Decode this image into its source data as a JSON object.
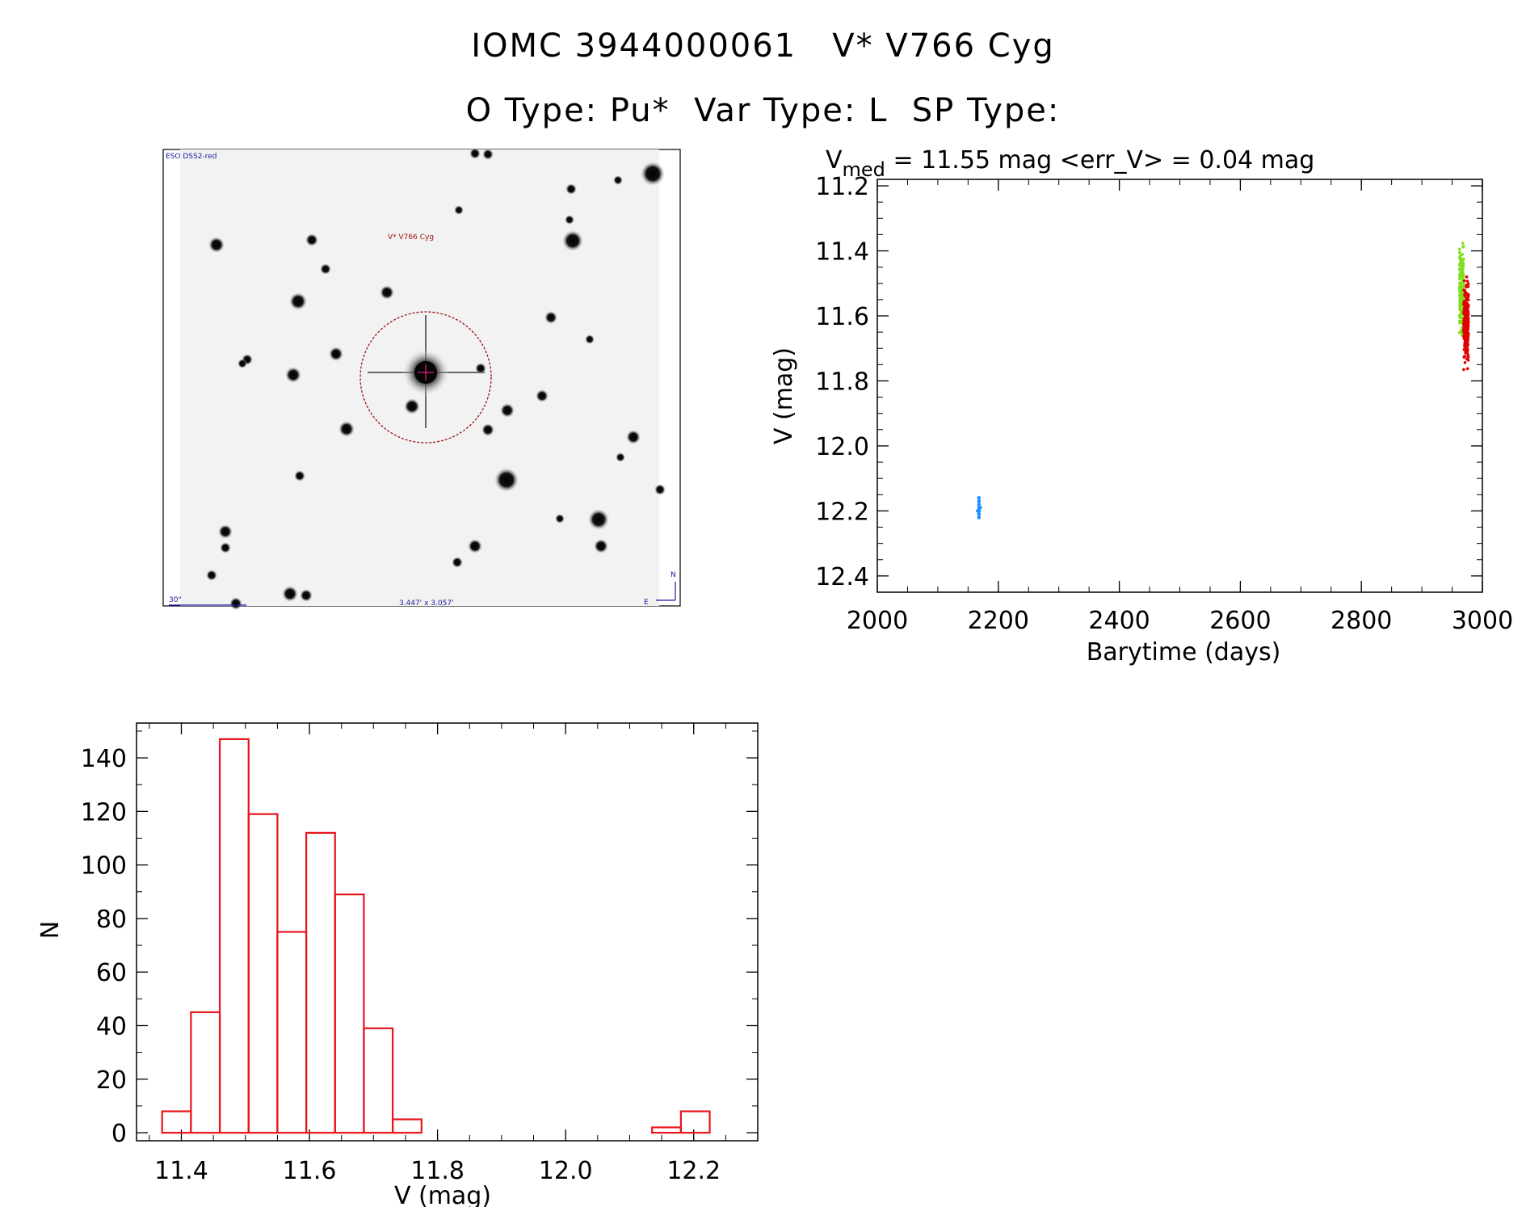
{
  "header": {
    "line1": "IOMC 3944000061   V* V766 Cyg",
    "line2": "O Type: Pu*  Var Type: L  SP Type:"
  },
  "sky_image": {
    "survey_label": "ESO DSS2-red",
    "target_label": "V* V766 Cyg",
    "scale_label": "30\"",
    "fov_label": "3.447' x 3.057'",
    "north_label": "N",
    "east_label": "E"
  },
  "colors": {
    "histogram": "#e8141c",
    "series_blue": "#1e90ff",
    "series_green": "#7fe01e",
    "series_red": "#e00000",
    "target_circle": "#a01010",
    "sky_labels": "#1a1aa0"
  },
  "chart_data": [
    {
      "type": "scatter",
      "title_main": "V",
      "title_sub": "med",
      "title_rest": " = 11.55 mag <err_V> = 0.04 mag",
      "xlabel": "Barytime (days)",
      "ylabel": "V (mag)",
      "xlim": [
        2000,
        3000
      ],
      "ylim": [
        12.45,
        11.18
      ],
      "xticks": [
        2000,
        2200,
        2400,
        2600,
        2800,
        3000
      ],
      "xtick_labels": [
        "2000",
        "2200",
        "2400",
        "2600",
        "2800",
        "3000"
      ],
      "yticks": [
        11.2,
        11.4,
        11.6,
        11.8,
        12.0,
        12.2,
        12.4
      ],
      "ytick_labels": [
        "11.2",
        "11.4",
        "11.6",
        "11.8",
        "12.0",
        "12.2",
        "12.4"
      ],
      "series": [
        {
          "color": "#1e90ff",
          "points": [
            [
              2168,
              12.16
            ],
            [
              2168,
              12.17
            ],
            [
              2168,
              12.18
            ],
            [
              2168,
              12.19
            ],
            [
              2168,
              12.2
            ],
            [
              2168,
              12.21
            ],
            [
              2168,
              12.22
            ],
            [
              2166,
              12.2
            ],
            [
              2170,
              12.19
            ]
          ]
        },
        {
          "color": "#7fe01e",
          "x_range": [
            2962,
            2969
          ],
          "y_range": [
            11.37,
            11.67
          ]
        },
        {
          "color": "#e00000",
          "x_range": [
            2969,
            2977
          ],
          "y_range": [
            11.48,
            11.77
          ]
        }
      ]
    },
    {
      "type": "bar",
      "xlabel": "V (mag)",
      "ylabel": "N",
      "xlim": [
        11.33,
        12.3
      ],
      "ylim": [
        -3,
        153
      ],
      "xticks": [
        11.4,
        11.6,
        11.8,
        12.0,
        12.2
      ],
      "xtick_labels": [
        "11.4",
        "11.6",
        "11.8",
        "12.0",
        "12.2"
      ],
      "yticks": [
        0,
        20,
        40,
        60,
        80,
        100,
        120,
        140
      ],
      "ytick_labels": [
        "0",
        "20",
        "40",
        "60",
        "80",
        "100",
        "120",
        "140"
      ],
      "bin_width": 0.045,
      "bins": [
        {
          "left": 11.37,
          "count": 8
        },
        {
          "left": 11.415,
          "count": 45
        },
        {
          "left": 11.46,
          "count": 147
        },
        {
          "left": 11.505,
          "count": 119
        },
        {
          "left": 11.55,
          "count": 75
        },
        {
          "left": 11.595,
          "count": 112
        },
        {
          "left": 11.64,
          "count": 89
        },
        {
          "left": 11.685,
          "count": 39
        },
        {
          "left": 11.73,
          "count": 5
        },
        {
          "left": 11.775,
          "count": 0
        },
        {
          "left": 11.82,
          "count": 0
        },
        {
          "left": 11.865,
          "count": 0
        },
        {
          "left": 11.91,
          "count": 0
        },
        {
          "left": 11.955,
          "count": 0
        },
        {
          "left": 12.0,
          "count": 0
        },
        {
          "left": 12.045,
          "count": 0
        },
        {
          "left": 12.09,
          "count": 0
        },
        {
          "left": 12.135,
          "count": 2
        },
        {
          "left": 12.18,
          "count": 8
        }
      ]
    }
  ]
}
